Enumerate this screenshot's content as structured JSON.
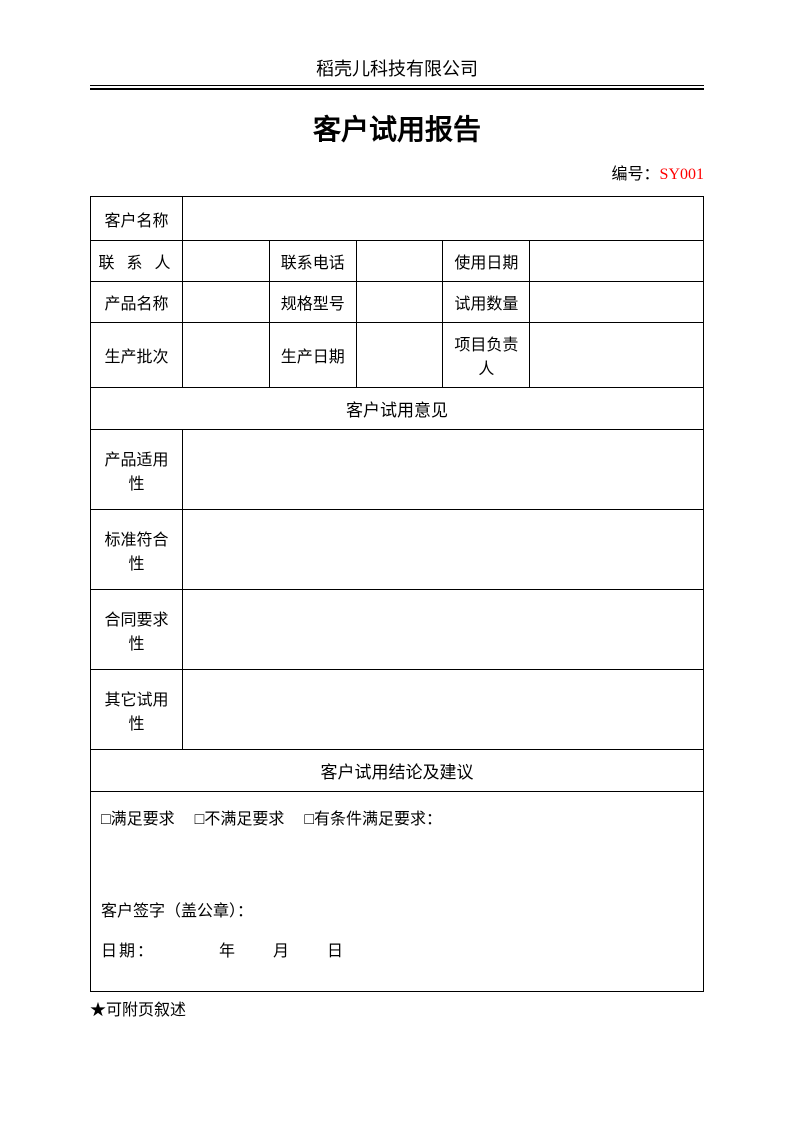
{
  "header": {
    "company": "稻壳儿科技有限公司",
    "title": "客户试用报告",
    "number_label": "编号：",
    "number_value": "SY001"
  },
  "fields": {
    "customer_name": "客户名称",
    "contact_person": "联 系 人",
    "contact_phone": "联系电话",
    "use_date": "使用日期",
    "product_name": "产品名称",
    "spec_model": "规格型号",
    "trial_quantity": "试用数量",
    "batch": "生产批次",
    "production_date": "生产日期",
    "project_manager": "项目负责人"
  },
  "sections": {
    "trial_feedback": "客户试用意见",
    "product_suitability": "产品适用性",
    "standard_compliance": "标准符合性",
    "contract_requirement": "合同要求性",
    "other_trial": "其它试用性",
    "conclusion": "客户试用结论及建议"
  },
  "conclusion": {
    "checkbox_line": "□满足要求　 □不满足要求　 □有条件满足要求：",
    "signature": "客户签字（盖公章）：",
    "date_line": "日期：　　　　年　　月　　日"
  },
  "footer": {
    "note": "★可附页叙述"
  },
  "colors": {
    "text": "#000000",
    "number": "#ff0000",
    "border": "#000000",
    "background": "#ffffff"
  }
}
